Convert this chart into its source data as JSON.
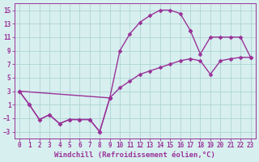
{
  "bg_color": "#d8efef",
  "grid_color": "#aed4d4",
  "line_color": "#993399",
  "marker": "D",
  "markersize": 2.5,
  "linewidth": 1.0,
  "xlabel": "Windchill (Refroidissement éolien,°C)",
  "xlabel_fontsize": 6.5,
  "tick_fontsize": 5.5,
  "xlim": [
    -0.5,
    23.5
  ],
  "ylim": [
    -4,
    16
  ],
  "yticks": [
    -3,
    -1,
    1,
    3,
    5,
    7,
    9,
    11,
    13,
    15
  ],
  "xticks": [
    0,
    1,
    2,
    3,
    4,
    5,
    6,
    7,
    8,
    9,
    10,
    11,
    12,
    13,
    14,
    15,
    16,
    17,
    18,
    19,
    20,
    21,
    22,
    23
  ],
  "line_jagged_x": [
    0,
    1,
    2,
    3,
    4,
    5,
    6,
    7,
    8,
    9
  ],
  "line_jagged_y": [
    3,
    1,
    -1.2,
    -0.5,
    -1.8,
    -1.2,
    -1.2,
    -1.2,
    -3.0,
    2.0
  ],
  "line_curve_x": [
    0,
    1,
    2,
    3,
    4,
    5,
    6,
    7,
    8,
    9,
    10,
    11,
    12,
    13,
    14,
    15,
    16,
    17
  ],
  "line_curve_y": [
    3,
    1,
    -1.2,
    -0.5,
    -1.8,
    -1.2,
    -1.2,
    -1.2,
    -3.0,
    2.0,
    9.0,
    11.5,
    13.2,
    14.2,
    15.0,
    15.0,
    14.5,
    12.0
  ],
  "line_diag_x": [
    0,
    9,
    10,
    11,
    12,
    13,
    14,
    15,
    16,
    17,
    18,
    19,
    20,
    21,
    22,
    23
  ],
  "line_diag_y": [
    3,
    2,
    3.5,
    4.5,
    5.5,
    6.0,
    6.5,
    7.0,
    7.5,
    7.8,
    7.5,
    5.5,
    7.5,
    7.8,
    8.0,
    8.0
  ],
  "line_upper_x": [
    17,
    18,
    19,
    20,
    21,
    22,
    23
  ],
  "line_upper_y": [
    12.0,
    8.5,
    11.0,
    11.0,
    11.0,
    11.0,
    8.0
  ]
}
